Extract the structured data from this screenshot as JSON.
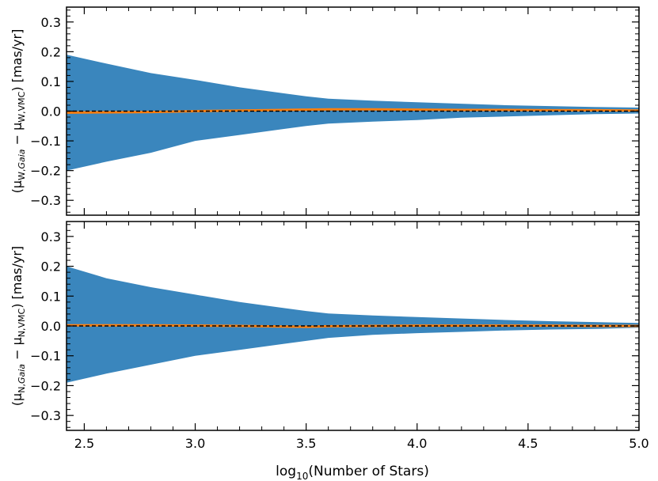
{
  "chart_data": {
    "type": "area",
    "xlabel_main": "log",
    "xlabel_sub": "10",
    "xlabel_rest": "(Number of Stars)",
    "xlim": [
      2.42,
      5.0
    ],
    "ylim": [
      -0.35,
      0.35
    ],
    "x_ticks": [
      "2.5",
      "3.0",
      "3.5",
      "4.0",
      "4.5",
      "5.0"
    ],
    "x_tick_values": [
      2.5,
      3.0,
      3.5,
      4.0,
      4.5,
      5.0
    ],
    "y_ticks": [
      "0.3",
      "0.2",
      "0.1",
      "0.0",
      "−0.1",
      "−0.2",
      "−0.3"
    ],
    "y_tick_values": [
      0.3,
      0.2,
      0.1,
      0.0,
      -0.1,
      -0.2,
      -0.3
    ],
    "reference_line": 0.0,
    "colors": {
      "band": "#3a86bd",
      "median": "#ff7f0e",
      "reference": "#000000"
    },
    "panels": [
      {
        "ylabel_prefix": "(μ",
        "ylabel_sub1": "W,",
        "ylabel_sub1_italic": "Gaia",
        "ylabel_mid": " − μ",
        "ylabel_sub2": "W,VMC",
        "ylabel_suffix": ") [mas/yr]",
        "x": [
          2.42,
          2.6,
          2.8,
          3.0,
          3.2,
          3.4,
          3.5,
          3.6,
          3.8,
          4.0,
          4.2,
          4.4,
          4.6,
          4.8,
          5.0
        ],
        "upper": [
          0.19,
          0.16,
          0.128,
          0.105,
          0.08,
          0.06,
          0.05,
          0.042,
          0.035,
          0.03,
          0.025,
          0.02,
          0.017,
          0.014,
          0.012
        ],
        "lower": [
          -0.2,
          -0.17,
          -0.14,
          -0.1,
          -0.08,
          -0.06,
          -0.05,
          -0.042,
          -0.035,
          -0.03,
          -0.022,
          -0.018,
          -0.014,
          -0.01,
          -0.008
        ],
        "median": [
          -0.005,
          -0.004,
          -0.003,
          0.0,
          0.002,
          0.004,
          0.005,
          0.006,
          0.006,
          0.005,
          0.004,
          0.004,
          0.003,
          0.003,
          0.002
        ]
      },
      {
        "ylabel_prefix": "(μ",
        "ylabel_sub1": "N,",
        "ylabel_sub1_italic": "Gaia",
        "ylabel_mid": " − μ",
        "ylabel_sub2": "N,VMC",
        "ylabel_suffix": ") [mas/yr]",
        "x": [
          2.42,
          2.6,
          2.8,
          3.0,
          3.2,
          3.4,
          3.5,
          3.6,
          3.8,
          4.0,
          4.2,
          4.4,
          4.6,
          4.8,
          5.0
        ],
        "upper": [
          0.2,
          0.16,
          0.13,
          0.105,
          0.08,
          0.06,
          0.05,
          0.042,
          0.035,
          0.03,
          0.025,
          0.02,
          0.016,
          0.013,
          0.01
        ],
        "lower": [
          -0.19,
          -0.16,
          -0.13,
          -0.1,
          -0.08,
          -0.06,
          -0.05,
          -0.04,
          -0.03,
          -0.024,
          -0.02,
          -0.015,
          -0.012,
          -0.01,
          -0.006
        ],
        "median": [
          0.002,
          0.002,
          0.002,
          0.001,
          0.0,
          -0.002,
          -0.003,
          -0.001,
          0.0,
          0.001,
          0.001,
          0.001,
          0.001,
          0.0,
          0.0
        ]
      }
    ]
  }
}
